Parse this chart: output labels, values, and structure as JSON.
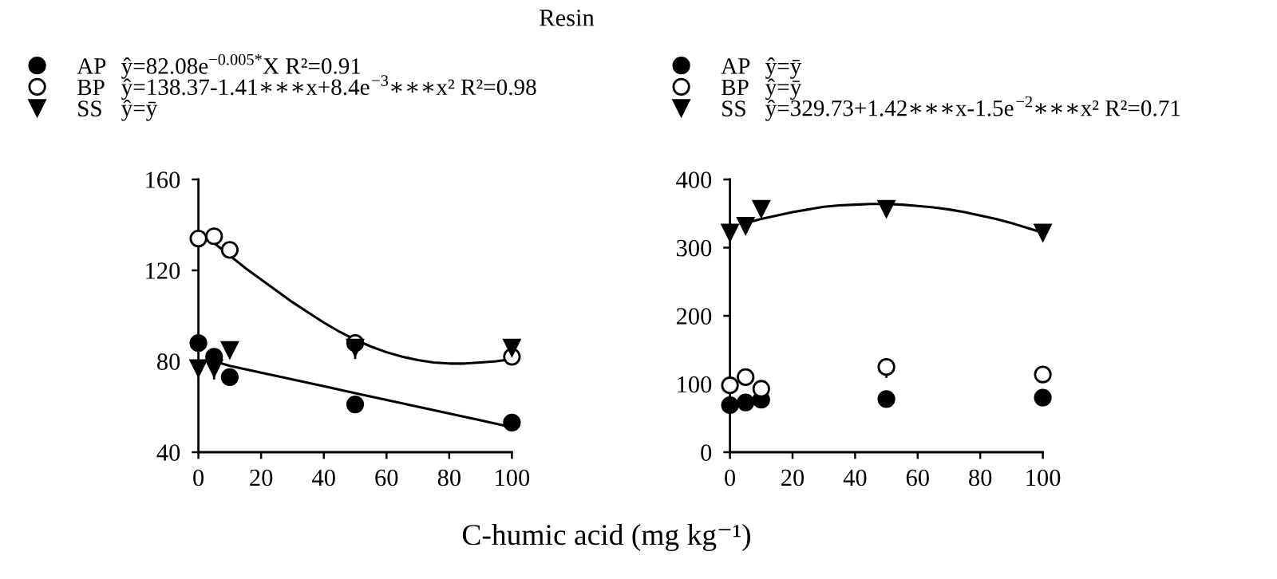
{
  "chart_data": [
    {
      "type": "scatter",
      "title": "Resin",
      "xlabel": "C-humic acid (mg kg⁻¹)",
      "x": [
        0,
        5,
        10,
        50,
        100
      ],
      "xlim": [
        0,
        100
      ],
      "xticks": [
        0,
        20,
        40,
        60,
        80,
        100
      ],
      "ylim": [
        40,
        160
      ],
      "yticks": [
        40,
        80,
        120,
        160
      ],
      "legend": "top left",
      "annotations": [
        "ŷ=82.08e$^{−0.005*}$X R²=0.91",
        "ŷ=138.37-1.41∗∗∗x+8.4e$^{−3}$∗∗∗x² R²=0.98",
        "ŷ=ȳ"
      ],
      "series": [
        {
          "name": "AP",
          "color": "#000000",
          "marker": "circle",
          "values": [
            88,
            82,
            73,
            61,
            53
          ]
        },
        {
          "name": "BP",
          "color": "#ffffff",
          "marker": "circle",
          "values": [
            134,
            135,
            129,
            88,
            82
          ]
        },
        {
          "name": "SS",
          "color": "#000000",
          "marker": "triangle",
          "values": [
            77,
            77,
            85,
            86,
            86
          ],
          "errors": [
            null,
            5,
            null,
            5,
            null
          ]
        },
        {
          "type": "line",
          "color": "#000000",
          "marker": "none",
          "x": [
            5,
            10,
            20,
            30,
            40,
            50,
            60,
            70,
            80,
            90,
            100
          ],
          "values": [
            80,
            78,
            75,
            72,
            69,
            66,
            63,
            60,
            57,
            54,
            51
          ]
        },
        {
          "type": "line",
          "color": "#000000",
          "marker": "none",
          "x": [
            5,
            10,
            15,
            20,
            25,
            30,
            35,
            40,
            45,
            50,
            55,
            60,
            65,
            70,
            75,
            80,
            85,
            90,
            95,
            100
          ],
          "values": [
            132,
            126.5,
            121,
            116,
            111,
            106,
            101.5,
            97,
            93,
            89.5,
            86.5,
            84,
            82,
            80.5,
            79.5,
            79,
            79,
            79.5,
            80,
            81
          ]
        }
      ]
    },
    {
      "type": "scatter",
      "x": [
        0,
        5,
        10,
        50,
        100
      ],
      "xlim": [
        0,
        100
      ],
      "xticks": [
        0,
        20,
        40,
        60,
        80,
        100
      ],
      "ylim": [
        0,
        400
      ],
      "yticks": [
        0,
        100,
        200,
        300,
        400
      ],
      "legend": "top left",
      "annotations": [
        "ŷ=ȳ",
        "ŷ=ȳ",
        "ŷ=329.73+1.42∗∗∗x-1.5e$^{−2}$∗∗∗x² R²=0.71"
      ],
      "series": [
        {
          "name": "AP",
          "color": "#000000",
          "marker": "circle",
          "values": [
            69,
            73,
            77,
            78,
            80
          ]
        },
        {
          "name": "BP",
          "color": "#ffffff",
          "marker": "circle",
          "values": [
            98,
            110,
            93,
            125,
            114
          ],
          "errors": [
            null,
            null,
            null,
            [
              109,
              125
            ],
            null
          ]
        },
        {
          "name": "SS",
          "color": "#000000",
          "marker": "triangle",
          "values": [
            322,
            332,
            357,
            357,
            322
          ]
        },
        {
          "type": "line",
          "color": "#000000",
          "marker": "none",
          "x": [
            5,
            10,
            15,
            20,
            25,
            30,
            35,
            40,
            45,
            50,
            55,
            60,
            65,
            70,
            75,
            80,
            85,
            90,
            95,
            100
          ],
          "values": [
            336,
            342,
            347,
            352,
            356,
            360,
            362,
            363,
            364,
            364,
            363,
            361,
            359,
            356,
            352,
            347,
            342,
            336,
            329,
            322
          ]
        }
      ]
    }
  ]
}
